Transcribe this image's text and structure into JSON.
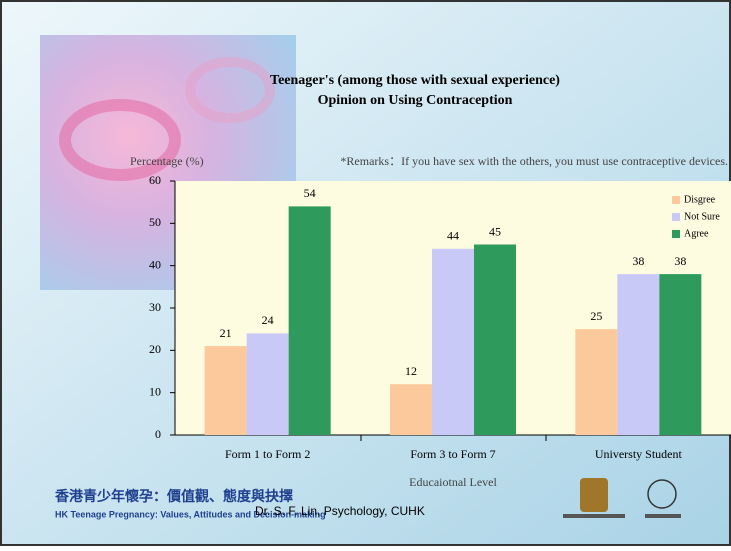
{
  "chart_data": {
    "type": "bar",
    "title": "Teenager's (among those with sexual experience)",
    "subtitle": "Opinion on Using Contraception",
    "remark": "*Remarks：If you have sex with the others, you must use contraceptive devices.",
    "y_label": "Percentage (%)",
    "x_label": "Educaiotnal Level",
    "categories": [
      "Form 1 to Form 2",
      "Form 3 to Form 7",
      "Universty Student"
    ],
    "series": [
      {
        "name": "Disgree",
        "color": "#fbc99b",
        "values": [
          21,
          12,
          25
        ]
      },
      {
        "name": "Not Sure",
        "color": "#c9c9f7",
        "values": [
          24,
          44,
          38
        ]
      },
      {
        "name": "Agree",
        "color": "#2e9a5c",
        "values": [
          54,
          45,
          38
        ]
      }
    ],
    "ylim": [
      0,
      60
    ],
    "yticks": [
      0,
      10,
      20,
      30,
      40,
      50,
      60
    ],
    "grid": false,
    "legend": "top-right"
  },
  "footer": {
    "chinese": "香港青少年懷孕：價值觀、態度與抉擇",
    "english": "HK Teenage Pregnancy: Values, Attitudes and Decision-making",
    "author": "Dr. S. F. Lin, Psychology, CUHK"
  }
}
